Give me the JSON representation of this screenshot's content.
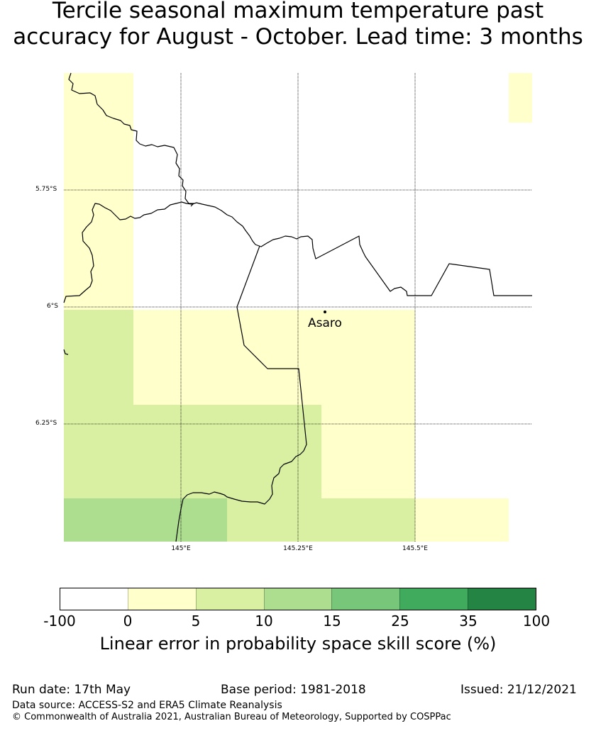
{
  "title_line1": "Tercile seasonal maximum temperature past",
  "title_line2": "accuracy for August - October. Lead time: 3 months",
  "map": {
    "lat_labels": [
      "5.75°S",
      "6°S",
      "6.25°S"
    ],
    "lon_labels": [
      "145°E",
      "145.25°E",
      "145.5°E"
    ],
    "place_label": "Asaro",
    "fill_colors": {
      "white": "#ffffff",
      "light_yellow": "#ffffcc",
      "pale_green": "#d9f0a3",
      "light_green": "#addd8e"
    }
  },
  "colorbar": {
    "ticks": [
      "-100",
      "0",
      "5",
      "10",
      "15",
      "25",
      "35",
      "100"
    ],
    "colors": [
      "#ffffff",
      "#ffffcc",
      "#d9f0a3",
      "#addd8e",
      "#78c679",
      "#41ab5d",
      "#238443"
    ],
    "label": "Linear error in probability space skill score (%)"
  },
  "footer": {
    "run_date": "Run date: 17th May",
    "base_period": "Base period: 1981-2018",
    "issued": "Issued: 21/12/2021",
    "data_source": "Data source: ACCESS-S2 and ERA5 Climate Reanalysis",
    "copyright": "© Commonwealth of Australia 2021, Australian Bureau of Meteorology, Supported by COSPPac"
  }
}
